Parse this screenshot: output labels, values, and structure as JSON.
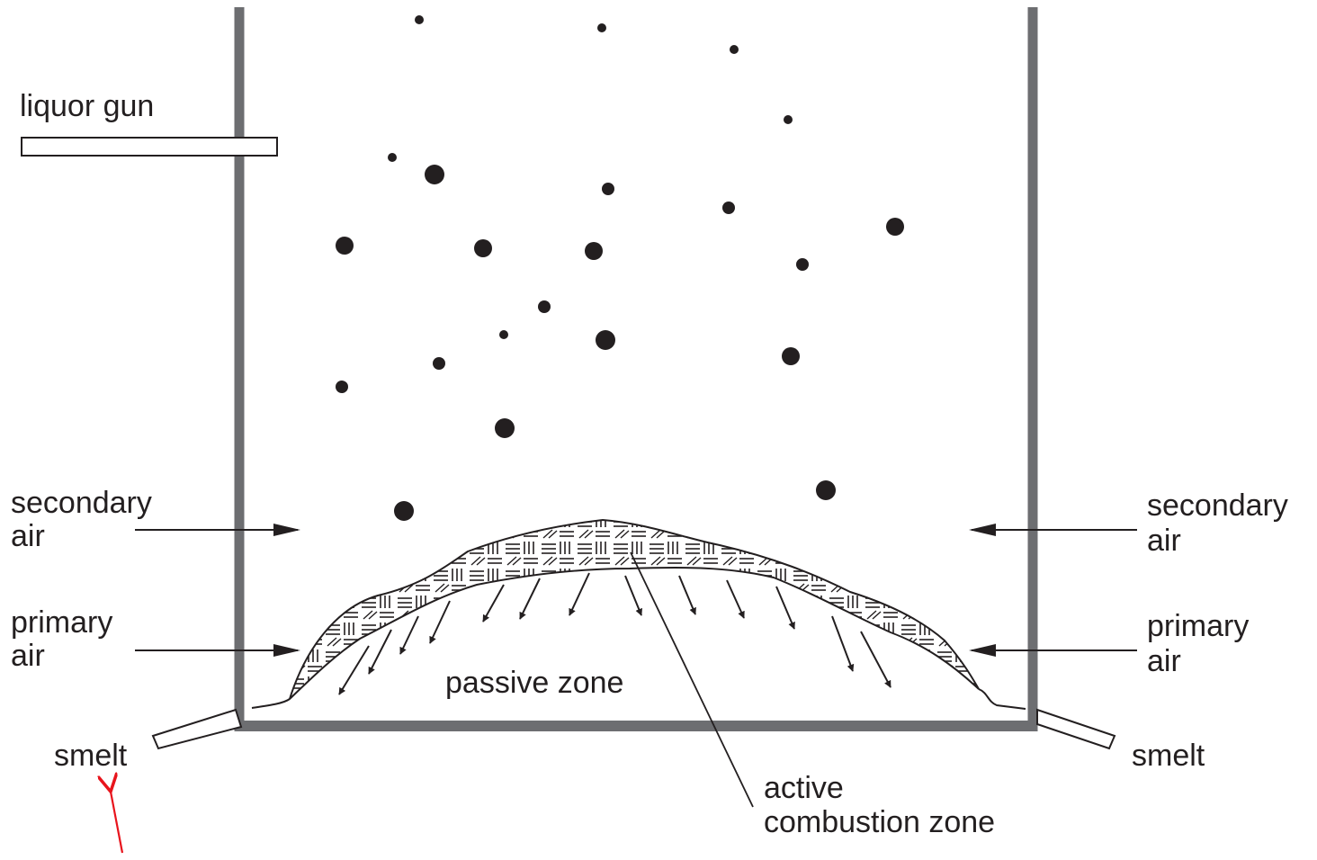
{
  "labels": {
    "liquor_gun": "liquor gun",
    "secondary_air_left_1": "secondary",
    "secondary_air_left_2": "air",
    "primary_air_left_1": "primary",
    "primary_air_left_2": "air",
    "secondary_air_right_1": "secondary",
    "secondary_air_right_2": "air",
    "primary_air_right_1": "primary",
    "primary_air_right_2": "air",
    "passive_zone": "passive zone",
    "smelt_left": "smelt",
    "smelt_right": "smelt",
    "active_zone_1": "active",
    "active_zone_2": "combustion zone"
  },
  "colors": {
    "wall": "#6d6e71",
    "ink": "#231f20",
    "annotation_arrow": "#e8141c"
  }
}
